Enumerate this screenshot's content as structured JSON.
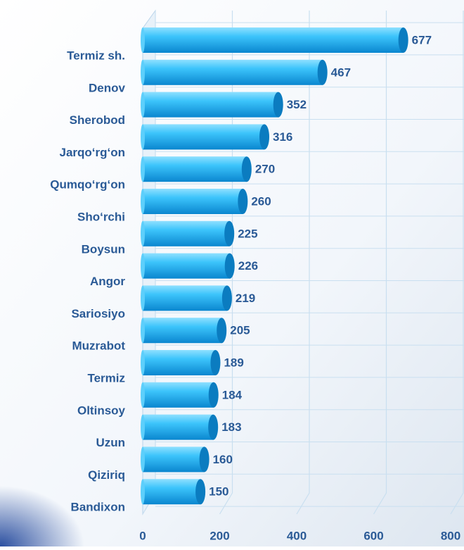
{
  "chart_data": {
    "type": "bar",
    "orientation": "horizontal",
    "categories": [
      "Termiz sh.",
      "Denov",
      "Sherobod",
      "Jarqo‘rg‘on",
      "Qumqo‘rg‘on",
      "Sho‘rchi",
      "Boysun",
      "Angor",
      "Sariosiyo",
      "Muzrabot",
      "Termiz",
      "Oltinsoy",
      "Uzun",
      "Qiziriq",
      "Bandixon"
    ],
    "values": [
      677,
      467,
      352,
      316,
      270,
      260,
      225,
      226,
      219,
      205,
      189,
      184,
      183,
      160,
      150
    ],
    "color": "#1aaef0",
    "xlim": [
      0,
      800
    ],
    "xticks": [
      0,
      200,
      400,
      600,
      800
    ],
    "grid": true
  }
}
